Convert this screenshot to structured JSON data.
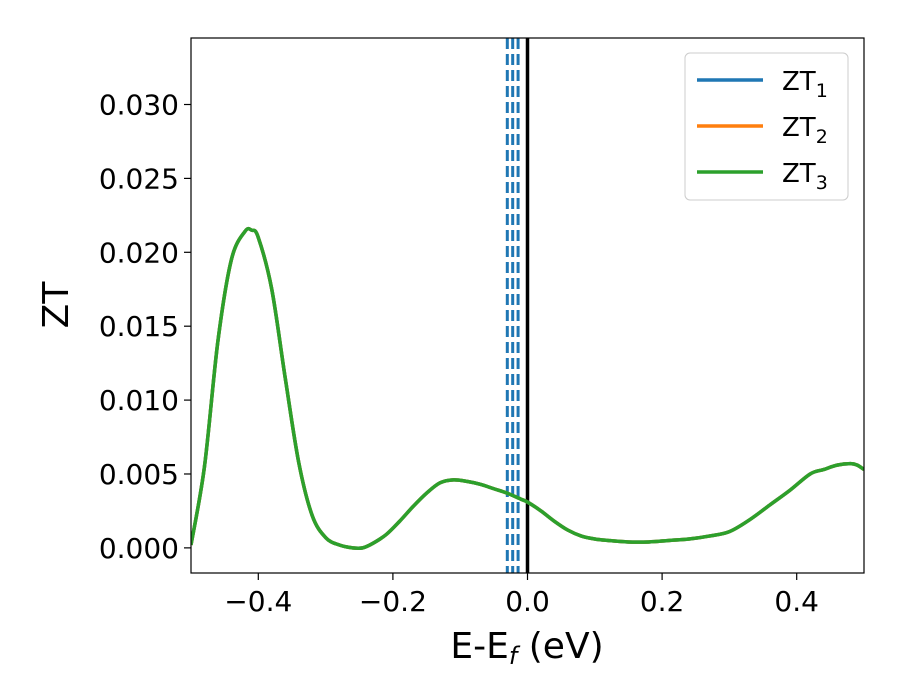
{
  "chart_data": {
    "type": "line",
    "xlabel": "E-E",
    "xlabel_sub": "f",
    "xlabel_suffix": " (eV)",
    "ylabel": "ZT",
    "xlim": [
      -0.5,
      0.5
    ],
    "ylim": [
      -0.0017,
      0.0345
    ],
    "xticks": [
      -0.4,
      -0.2,
      0.0,
      0.2,
      0.4
    ],
    "xtick_labels": [
      "−0.4",
      "−0.2",
      "0.0",
      "0.2",
      "0.4"
    ],
    "yticks": [
      0.0,
      0.005,
      0.01,
      0.015,
      0.02,
      0.025,
      0.03
    ],
    "ytick_labels": [
      "0.000",
      "0.005",
      "0.010",
      "0.015",
      "0.020",
      "0.025",
      "0.030"
    ],
    "grid": false,
    "legend_position": "top-right",
    "series": [
      {
        "name": "ZT",
        "name_sub": "1",
        "color": "#1f77b4",
        "x": [
          -0.5,
          -0.48,
          -0.46,
          -0.44,
          -0.42,
          -0.41,
          -0.4,
          -0.38,
          -0.36,
          -0.34,
          -0.32,
          -0.3,
          -0.28,
          -0.26,
          -0.245,
          -0.23,
          -0.21,
          -0.19,
          -0.17,
          -0.15,
          -0.13,
          -0.11,
          -0.09,
          -0.07,
          -0.05,
          -0.03,
          -0.01,
          0.0,
          0.02,
          0.04,
          0.06,
          0.08,
          0.1,
          0.12,
          0.15,
          0.18,
          0.21,
          0.24,
          0.27,
          0.3,
          0.33,
          0.36,
          0.39,
          0.42,
          0.44,
          0.46,
          0.48,
          0.49,
          0.5
        ],
        "y": [
          0.0002,
          0.0055,
          0.014,
          0.0195,
          0.0214,
          0.0215,
          0.021,
          0.0175,
          0.0115,
          0.0058,
          0.0022,
          0.0007,
          0.0002,
          0.0,
          0.0,
          0.0003,
          0.0009,
          0.0018,
          0.0028,
          0.0037,
          0.0044,
          0.0046,
          0.0045,
          0.0043,
          0.004,
          0.0037,
          0.0033,
          0.0031,
          0.0025,
          0.0018,
          0.0012,
          0.0008,
          0.0006,
          0.0005,
          0.0004,
          0.0004,
          0.0005,
          0.0006,
          0.0008,
          0.0011,
          0.0019,
          0.0029,
          0.0039,
          0.005,
          0.0053,
          0.0056,
          0.0057,
          0.0056,
          0.0053
        ]
      },
      {
        "name": "ZT",
        "name_sub": "2",
        "color": "#ff7f0e",
        "x": [
          -0.5,
          -0.48,
          -0.46,
          -0.44,
          -0.42,
          -0.41,
          -0.4,
          -0.38,
          -0.36,
          -0.34,
          -0.32,
          -0.3,
          -0.28,
          -0.26,
          -0.245,
          -0.23,
          -0.21,
          -0.19,
          -0.17,
          -0.15,
          -0.13,
          -0.11,
          -0.09,
          -0.07,
          -0.05,
          -0.03,
          -0.01,
          0.0,
          0.02,
          0.04,
          0.06,
          0.08,
          0.1,
          0.12,
          0.15,
          0.18,
          0.21,
          0.24,
          0.27,
          0.3,
          0.33,
          0.36,
          0.39,
          0.42,
          0.44,
          0.46,
          0.48,
          0.49,
          0.5
        ],
        "y": [
          0.0002,
          0.0055,
          0.014,
          0.0195,
          0.0214,
          0.0215,
          0.021,
          0.0175,
          0.0115,
          0.0058,
          0.0022,
          0.0007,
          0.0002,
          0.0,
          0.0,
          0.0003,
          0.0009,
          0.0018,
          0.0028,
          0.0037,
          0.0044,
          0.0046,
          0.0045,
          0.0043,
          0.004,
          0.0037,
          0.0033,
          0.0031,
          0.0025,
          0.0018,
          0.0012,
          0.0008,
          0.0006,
          0.0005,
          0.0004,
          0.0004,
          0.0005,
          0.0006,
          0.0008,
          0.0011,
          0.0019,
          0.0029,
          0.0039,
          0.005,
          0.0053,
          0.0056,
          0.0057,
          0.0056,
          0.0053
        ]
      },
      {
        "name": "ZT",
        "name_sub": "3",
        "color": "#2ca02c",
        "x": [
          -0.5,
          -0.48,
          -0.46,
          -0.44,
          -0.42,
          -0.41,
          -0.4,
          -0.38,
          -0.36,
          -0.34,
          -0.32,
          -0.3,
          -0.28,
          -0.26,
          -0.245,
          -0.23,
          -0.21,
          -0.19,
          -0.17,
          -0.15,
          -0.13,
          -0.11,
          -0.09,
          -0.07,
          -0.05,
          -0.03,
          -0.01,
          0.0,
          0.02,
          0.04,
          0.06,
          0.08,
          0.1,
          0.12,
          0.15,
          0.18,
          0.21,
          0.24,
          0.27,
          0.3,
          0.33,
          0.36,
          0.39,
          0.42,
          0.44,
          0.46,
          0.48,
          0.49,
          0.5
        ],
        "y": [
          0.0002,
          0.0055,
          0.014,
          0.0195,
          0.0214,
          0.0215,
          0.021,
          0.0175,
          0.0115,
          0.0058,
          0.0022,
          0.0007,
          0.0002,
          0.0,
          0.0,
          0.0003,
          0.0009,
          0.0018,
          0.0028,
          0.0037,
          0.0044,
          0.0046,
          0.0045,
          0.0043,
          0.004,
          0.0037,
          0.0033,
          0.0031,
          0.0025,
          0.0018,
          0.0012,
          0.0008,
          0.0006,
          0.0005,
          0.0004,
          0.0004,
          0.0005,
          0.0006,
          0.0008,
          0.0011,
          0.0019,
          0.0029,
          0.0039,
          0.005,
          0.0053,
          0.0056,
          0.0057,
          0.0056,
          0.0053
        ]
      }
    ],
    "vlines": [
      {
        "x": 0.0,
        "color": "#000000",
        "style": "solid"
      },
      {
        "x": -0.03,
        "color": "#1f77b4",
        "style": "dashed"
      },
      {
        "x": -0.022,
        "color": "#1f77b4",
        "style": "dashed"
      },
      {
        "x": -0.014,
        "color": "#1f77b4",
        "style": "dashed"
      }
    ]
  }
}
